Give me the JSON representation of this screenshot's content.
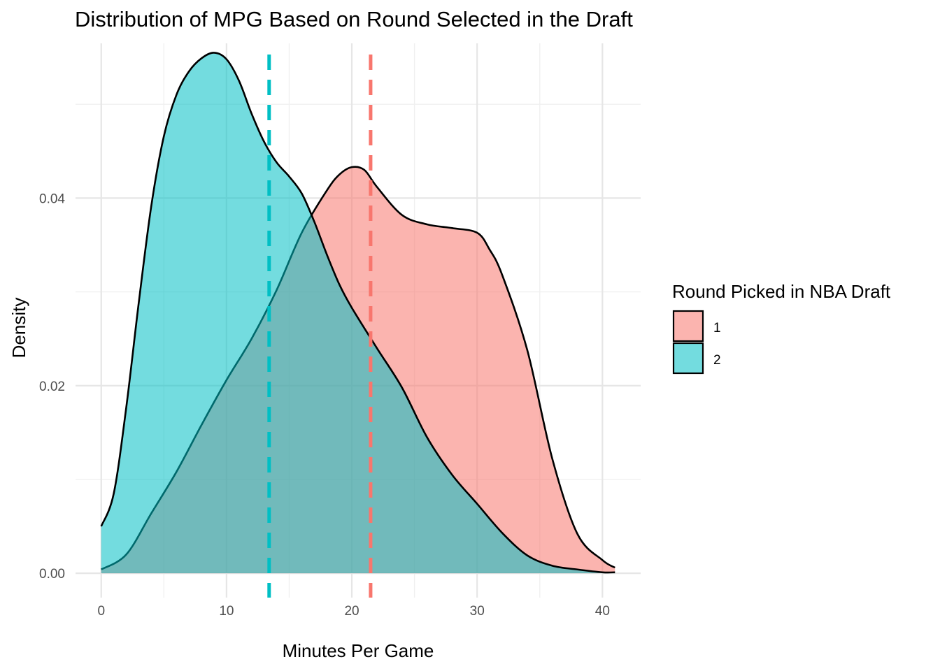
{
  "chart_data": {
    "type": "area",
    "subtype": "density",
    "title": "Distribution of MPG Based on Round Selected in the Draft",
    "xlabel": "Minutes Per Game",
    "ylabel": "Density",
    "xlim": [
      -2.05,
      43.05
    ],
    "ylim": [
      -0.0026,
      0.0565
    ],
    "x_ticks": [
      0,
      10,
      20,
      30,
      40
    ],
    "x_tick_labels": [
      "0",
      "10",
      "20",
      "30",
      "40"
    ],
    "y_ticks": [
      0.0,
      0.02,
      0.04
    ],
    "y_tick_labels": [
      "0.00",
      "0.02",
      "0.04"
    ],
    "grid": true,
    "legend": {
      "title": "Round Picked in NBA Draft",
      "placement": "right",
      "entries": [
        "1",
        "2"
      ]
    },
    "colors": {
      "round1": "#F8766D",
      "round2": "#00BFC4"
    },
    "series": [
      {
        "name": "1",
        "x": [
          0,
          2,
          4,
          6,
          8,
          10,
          12,
          14,
          16,
          18,
          19,
          20,
          21,
          22,
          24,
          26,
          28,
          30,
          31,
          32,
          34,
          36,
          38,
          40,
          41
        ],
        "values": [
          0.0004,
          0.002,
          0.0064,
          0.0108,
          0.0158,
          0.0206,
          0.025,
          0.0302,
          0.0363,
          0.0408,
          0.0425,
          0.0433,
          0.043,
          0.0412,
          0.0382,
          0.0372,
          0.0368,
          0.0363,
          0.0345,
          0.0318,
          0.0238,
          0.0122,
          0.0042,
          0.0014,
          0.0006
        ]
      },
      {
        "name": "2",
        "x": [
          0,
          1,
          2,
          3,
          4,
          5,
          6,
          7,
          8,
          9,
          10,
          11,
          12,
          13,
          14,
          15,
          16,
          17,
          18,
          19,
          20,
          22,
          24,
          26,
          28,
          30,
          32,
          34,
          36,
          38,
          40,
          41
        ],
        "values": [
          0.005,
          0.0085,
          0.0177,
          0.0289,
          0.0392,
          0.0466,
          0.051,
          0.0535,
          0.0549,
          0.0555,
          0.0548,
          0.0525,
          0.049,
          0.046,
          0.0438,
          0.0423,
          0.0405,
          0.0375,
          0.034,
          0.0308,
          0.0283,
          0.024,
          0.0198,
          0.0145,
          0.0105,
          0.0074,
          0.0043,
          0.0019,
          0.0008,
          0.0004,
          0.0001,
          0.0001
        ]
      }
    ],
    "mean_lines": [
      {
        "series": "1",
        "x": 21.5
      },
      {
        "series": "2",
        "x": 13.4
      }
    ]
  }
}
